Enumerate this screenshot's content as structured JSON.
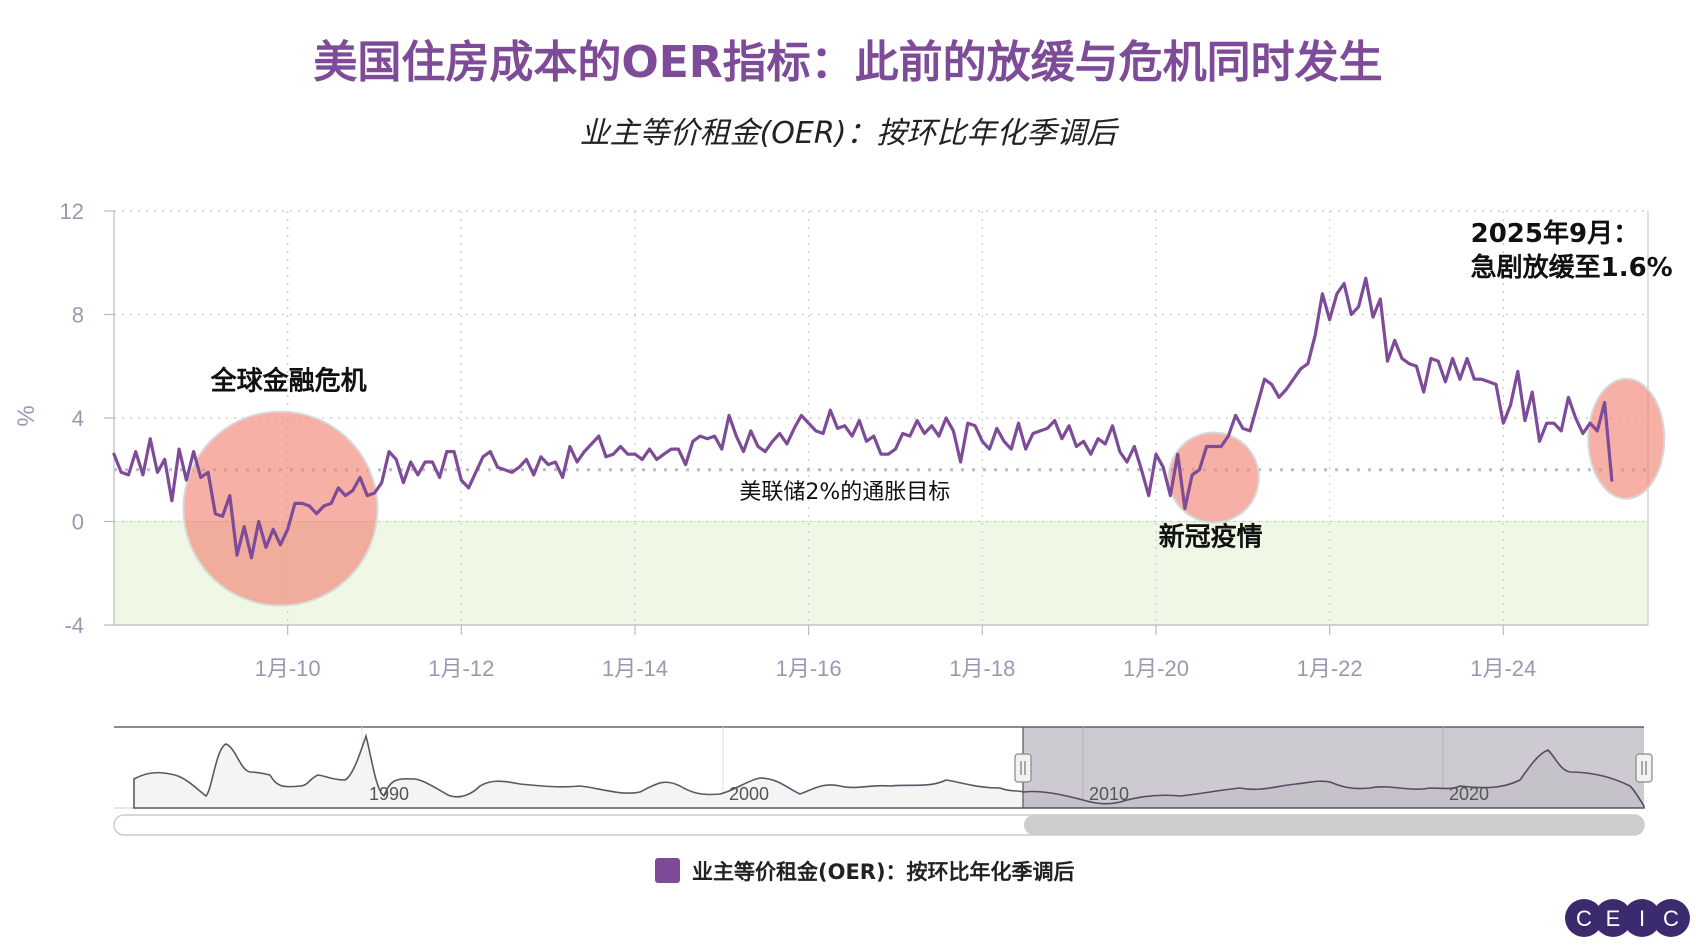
{
  "page": {
    "title": "美国住房成本的OER指标：此前的放缓与危机同时发生",
    "subtitle": "业主等价租金(OER)：按环比年化季调后"
  },
  "colors": {
    "series": "#7d4b97",
    "title": "#7d4b97",
    "highlight": "#f08070",
    "band": "#eef8e4",
    "axis_text": "#9a98b0"
  },
  "chart_data": {
    "type": "line",
    "title": "美国住房成本的OER指标：此前的放缓与危机同时发生",
    "subtitle": "业主等价租金(OER)：按环比年化季调后",
    "ylabel": "%",
    "xlabel": "",
    "ylim": [
      -4,
      12
    ],
    "yticks": [
      "12",
      "8",
      "4",
      "0",
      "-4"
    ],
    "xlim": [
      "2008-01",
      "2025-09"
    ],
    "xticks": [
      {
        "label": "1月-10",
        "date": "2010-01"
      },
      {
        "label": "1月-12",
        "date": "2012-01"
      },
      {
        "label": "1月-14",
        "date": "2014-01"
      },
      {
        "label": "1月-16",
        "date": "2016-01"
      },
      {
        "label": "1月-18",
        "date": "2018-01"
      },
      {
        "label": "1月-20",
        "date": "2020-01"
      },
      {
        "label": "1月-22",
        "date": "2022-01"
      },
      {
        "label": "1月-24",
        "date": "2024-01"
      }
    ],
    "grid": true,
    "legend_position": "bottom-center",
    "reference_line": {
      "value": 2,
      "label": "美联储2%的通胀目标"
    },
    "shaded_band": {
      "from": -4,
      "to": 0
    },
    "series": [
      {
        "name": "业主等价租金(OER)：按环比年化季调后",
        "start": "2008-01",
        "frequency": "monthly",
        "values": [
          2.6,
          1.9,
          1.8,
          2.7,
          1.8,
          3.2,
          1.9,
          2.4,
          0.8,
          2.8,
          1.6,
          2.7,
          1.7,
          1.9,
          0.3,
          0.2,
          1.0,
          -1.3,
          -0.2,
          -1.4,
          0.0,
          -1.0,
          -0.3,
          -0.9,
          -0.3,
          0.7,
          0.7,
          0.6,
          0.3,
          0.6,
          0.7,
          1.3,
          1.0,
          1.2,
          1.7,
          1.0,
          1.1,
          1.5,
          2.7,
          2.4,
          1.5,
          2.3,
          1.8,
          2.3,
          2.3,
          1.7,
          2.7,
          2.7,
          1.6,
          1.3,
          1.9,
          2.5,
          2.7,
          2.1,
          2.0,
          1.9,
          2.1,
          2.4,
          1.8,
          2.5,
          2.2,
          2.3,
          1.7,
          2.9,
          2.3,
          2.7,
          3.0,
          3.3,
          2.5,
          2.6,
          2.9,
          2.6,
          2.6,
          2.4,
          2.8,
          2.4,
          2.6,
          2.8,
          2.8,
          2.2,
          3.1,
          3.3,
          3.2,
          3.3,
          2.8,
          4.1,
          3.3,
          2.7,
          3.5,
          2.9,
          2.7,
          3.1,
          3.4,
          3.0,
          3.6,
          4.1,
          3.8,
          3.5,
          3.4,
          4.3,
          3.6,
          3.7,
          3.3,
          3.9,
          3.1,
          3.3,
          2.6,
          2.6,
          2.8,
          3.4,
          3.3,
          3.9,
          3.4,
          3.7,
          3.3,
          4.0,
          3.5,
          2.3,
          3.8,
          3.7,
          3.1,
          2.8,
          3.6,
          3.1,
          2.8,
          3.8,
          2.8,
          3.4,
          3.5,
          3.6,
          3.9,
          3.2,
          3.7,
          2.9,
          3.1,
          2.6,
          3.2,
          3.0,
          3.7,
          2.7,
          2.3,
          2.9,
          2.0,
          1.0,
          2.6,
          2.1,
          1.0,
          2.6,
          0.5,
          1.8,
          2.0,
          2.9,
          2.9,
          2.9,
          3.3,
          4.1,
          3.6,
          3.5,
          4.5,
          5.5,
          5.3,
          4.8,
          5.1,
          5.5,
          5.9,
          6.1,
          7.2,
          8.8,
          7.8,
          8.8,
          9.2,
          8.0,
          8.3,
          9.4,
          7.9,
          8.6,
          6.2,
          7.0,
          6.3,
          6.1,
          6.0,
          5.0,
          6.3,
          6.2,
          5.4,
          6.3,
          5.5,
          6.3,
          5.5,
          5.5,
          5.4,
          5.3,
          3.8,
          4.5,
          5.8,
          3.9,
          5.0,
          3.1,
          3.8,
          3.8,
          3.5,
          4.8,
          4.0,
          3.4,
          3.8,
          3.5,
          4.6,
          1.6
        ]
      }
    ],
    "annotations": [
      {
        "text": "全球金融危机",
        "date": "2010-01",
        "y": 5.1,
        "highlight_center": {
          "date": "2009-12",
          "y": 0.5
        }
      },
      {
        "text": "新冠疫情",
        "date": "2020-08",
        "y": 0.0,
        "highlight_center": {
          "date": "2020-09",
          "y": 1.7
        }
      },
      {
        "text_lines": [
          "2025年9月：",
          "急剧放缓至1.6%"
        ],
        "date": "2023-06",
        "y": 10.8,
        "highlight_center": {
          "date": "2025-06",
          "y": 3.2
        }
      }
    ]
  },
  "navigator": {
    "labels": [
      "1990",
      "2000",
      "2010",
      "2020"
    ],
    "selected_range": "2008-01 – 2025-09"
  },
  "legend": {
    "items": [
      {
        "label": "业主等价租金(OER)：按环比年化季调后",
        "color": "#7d4b97"
      }
    ]
  },
  "logo": {
    "letters": [
      "C",
      "E",
      "I",
      "C"
    ],
    "color": "#3b2a6e"
  }
}
